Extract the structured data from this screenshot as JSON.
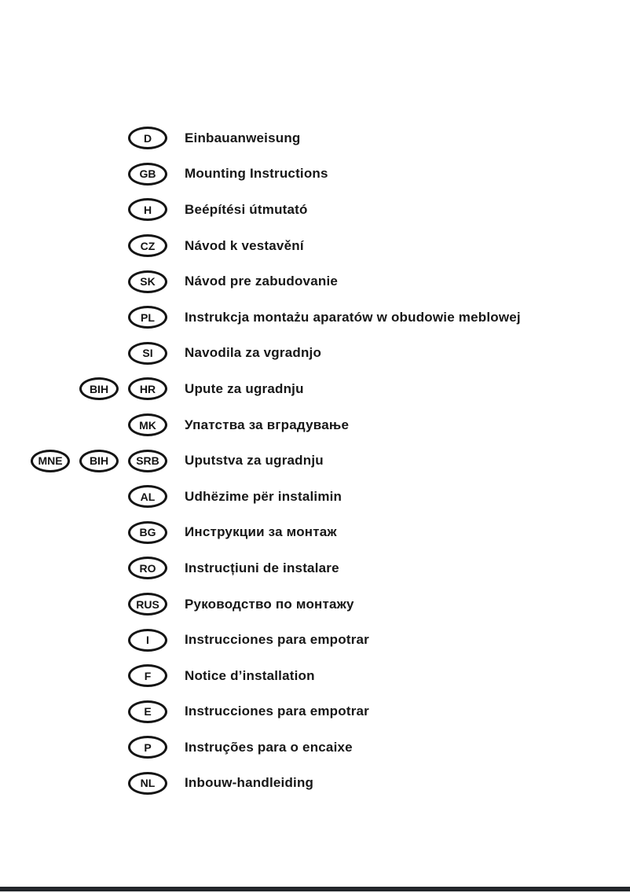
{
  "document": {
    "type": "installation-manual-language-index",
    "rows": [
      {
        "codes": [
          "D"
        ],
        "label": "Einbauanweisung"
      },
      {
        "codes": [
          "GB"
        ],
        "label": "Mounting Instructions"
      },
      {
        "codes": [
          "H"
        ],
        "label": "Beépítési útmutató"
      },
      {
        "codes": [
          "CZ"
        ],
        "label": "Návod k vestavění"
      },
      {
        "codes": [
          "SK"
        ],
        "label": "Návod pre zabudovanie"
      },
      {
        "codes": [
          "PL"
        ],
        "label": "Instrukcja montażu aparatów w obudowie meblowej"
      },
      {
        "codes": [
          "SI"
        ],
        "label": "Navodila za vgradnjo"
      },
      {
        "codes": [
          "BIH",
          "HR"
        ],
        "label": "Upute za ugradnju"
      },
      {
        "codes": [
          "MK"
        ],
        "label": "Упатства за вградување"
      },
      {
        "codes": [
          "MNE",
          "BIH",
          "SRB"
        ],
        "label": "Uputstva za ugradnju"
      },
      {
        "codes": [
          "AL"
        ],
        "label": "Udhëzime për instalimin"
      },
      {
        "codes": [
          "BG"
        ],
        "label": "Инструкции за монтаж"
      },
      {
        "codes": [
          "RO"
        ],
        "label": "Instrucțiuni de instalare"
      },
      {
        "codes": [
          "RUS"
        ],
        "label": "Руководство по монтажу"
      },
      {
        "codes": [
          "I"
        ],
        "label": "Instrucciones para empotrar"
      },
      {
        "codes": [
          "F"
        ],
        "label": "Notice d’installation"
      },
      {
        "codes": [
          "E"
        ],
        "label": "Instrucciones para empotrar"
      },
      {
        "codes": [
          "P"
        ],
        "label": "Instruções para o encaixe"
      },
      {
        "codes": [
          "NL"
        ],
        "label": "Inbouw-handleiding"
      }
    ],
    "colors": {
      "text": "#161616",
      "badge_border": "#141414",
      "footer_bar": "#23272b",
      "background": "#ffffff"
    }
  }
}
